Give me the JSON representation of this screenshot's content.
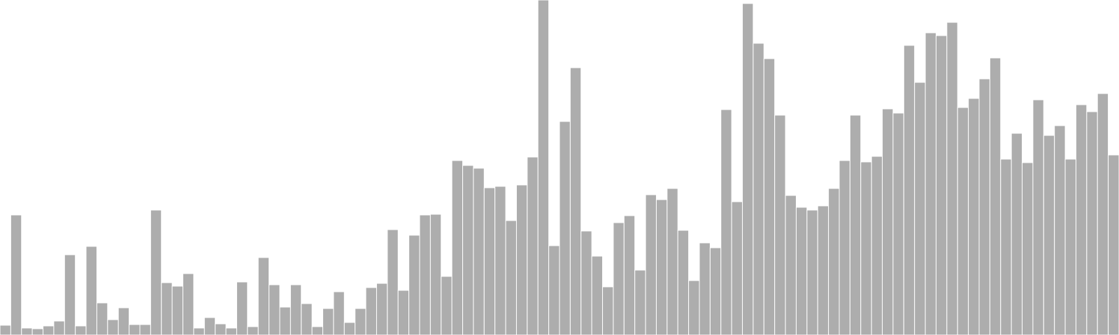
{
  "chart_data": {
    "type": "bar",
    "ylim": [
      0,
      480
    ],
    "grid": false,
    "legend": "none",
    "colors": {
      "bar": "#adadad",
      "background": "#ffffff"
    },
    "series": [
      {
        "values": [
          14,
          172,
          10,
          9,
          13,
          20,
          115,
          13,
          127,
          46,
          22,
          39,
          15,
          15,
          179,
          75,
          70,
          88,
          10,
          25,
          16,
          10,
          76,
          12,
          111,
          72,
          40,
          72,
          45,
          12,
          38,
          62,
          18,
          38,
          68,
          74,
          151,
          64,
          143,
          172,
          173,
          84,
          250,
          243,
          239,
          211,
          213,
          164,
          215,
          255,
          480,
          128,
          306,
          383,
          149,
          113,
          69,
          161,
          171,
          93,
          201,
          194,
          210,
          150,
          78,
          132,
          125,
          323,
          191,
          475,
          418,
          396,
          315,
          200,
          183,
          179,
          185,
          210,
          250,
          315,
          248,
          256,
          324,
          318,
          415,
          362,
          433,
          429,
          448,
          326,
          339,
          367,
          397,
          252,
          289,
          247,
          337,
          286,
          300,
          252,
          330,
          320,
          346,
          258
        ]
      }
    ]
  }
}
